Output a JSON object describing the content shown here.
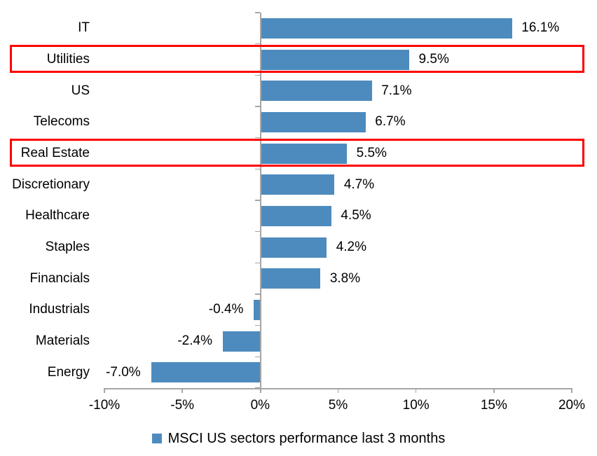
{
  "chart_data": {
    "type": "bar",
    "orientation": "horizontal",
    "categories": [
      "IT",
      "Utilities",
      "US",
      "Telecoms",
      "Real Estate",
      "Discretionary",
      "Healthcare",
      "Staples",
      "Financials",
      "Industrials",
      "Materials",
      "Energy"
    ],
    "values": [
      16.1,
      9.5,
      7.1,
      6.7,
      5.5,
      4.7,
      4.5,
      4.2,
      3.8,
      -0.4,
      -2.4,
      -7.0
    ],
    "data_labels": [
      "16.1%",
      "9.5%",
      "7.1%",
      "6.7%",
      "5.5%",
      "4.7%",
      "4.5%",
      "4.2%",
      "3.8%",
      "-0.4%",
      "-2.4%",
      "-7.0%"
    ],
    "x_tick_labels": [
      "-10%",
      "-5%",
      "0%",
      "5%",
      "10%",
      "15%",
      "20%"
    ],
    "x_tick_values": [
      -10,
      -5,
      0,
      5,
      10,
      15,
      20
    ],
    "xlim": [
      -10,
      20
    ],
    "grid": false,
    "bar_color": "#4D8BBE",
    "axis_color": "#A6A6A6",
    "text_color": "#000000",
    "legend_position": "bottom",
    "legend": {
      "label": "MSCI US sectors performance last 3 months",
      "marker_color": "#4D8BBE"
    },
    "highlight": {
      "color": "#FE0000",
      "categories": [
        "Utilities",
        "Real Estate"
      ]
    }
  }
}
